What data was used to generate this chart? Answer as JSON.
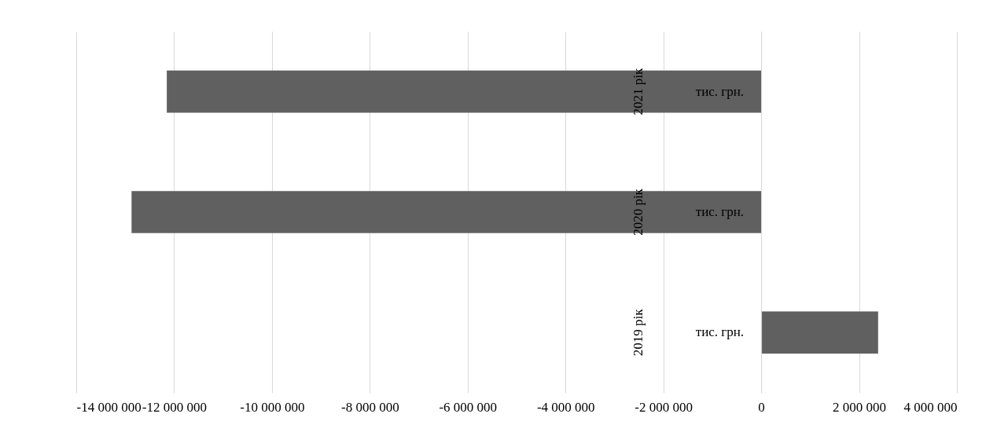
{
  "chart_data": {
    "type": "bar",
    "orientation": "horizontal",
    "categories": [
      "2021 рік",
      "2020 рік",
      "2019 рік"
    ],
    "values": [
      -12150000,
      -12870000,
      2390000
    ],
    "color": "#606060",
    "xlim": [
      -14000000,
      4000000
    ],
    "xticks": [
      -14000000,
      -12000000,
      -10000000,
      -8000000,
      -6000000,
      -4000000,
      -2000000,
      0,
      2000000,
      4000000
    ],
    "grid": "x",
    "annotations": [
      "тис. грн.",
      "тис. грн.",
      "тис. грн."
    ]
  }
}
